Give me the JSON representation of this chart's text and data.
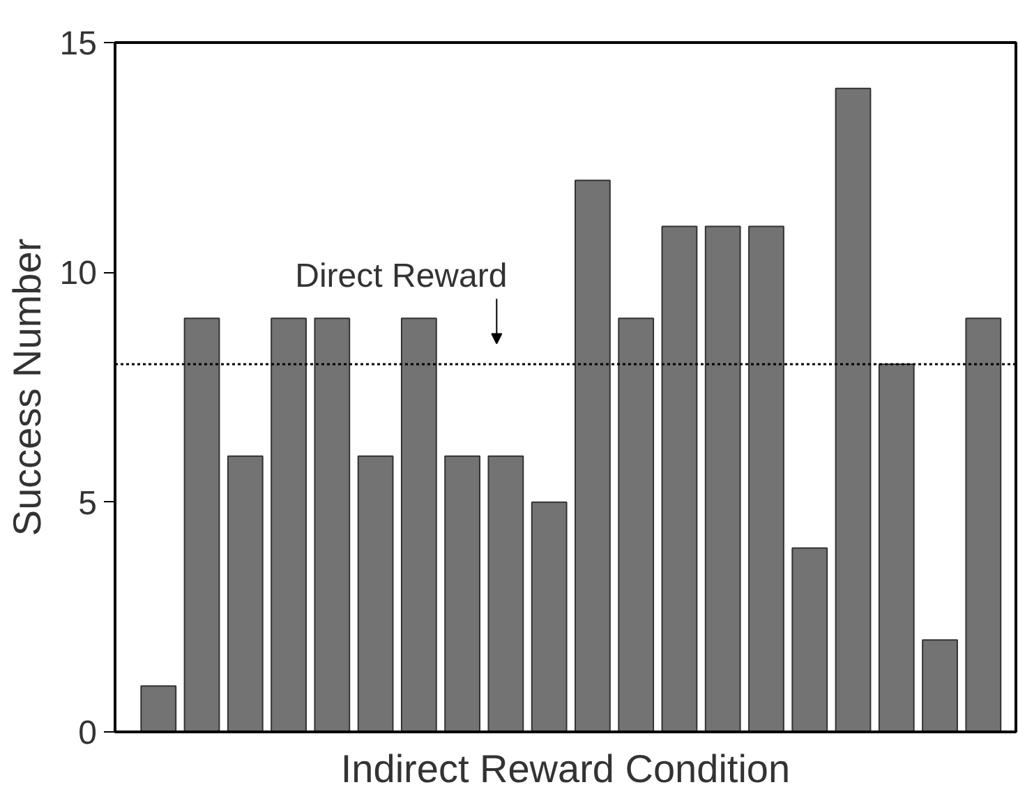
{
  "chart_data": {
    "type": "bar",
    "xlabel": "Indirect Reward Condition",
    "ylabel": "Success Number",
    "categories": [
      null,
      null,
      null,
      null,
      null,
      null,
      null,
      null,
      null,
      null,
      null,
      null,
      null,
      null,
      null,
      null,
      null,
      null,
      null,
      null
    ],
    "values": [
      1,
      9,
      6,
      9,
      9,
      6,
      9,
      6,
      6,
      5,
      12,
      9,
      11,
      11,
      11,
      4,
      14,
      8,
      2,
      9
    ],
    "color": "#737373",
    "ylim": [
      0,
      15
    ],
    "yticks": [
      0,
      5,
      10,
      15
    ],
    "grid": false,
    "ref_lines": [
      {
        "axis": "y",
        "value": 8,
        "label": "Direct Reward",
        "line_style": "dotted",
        "color": "#000000"
      }
    ]
  }
}
